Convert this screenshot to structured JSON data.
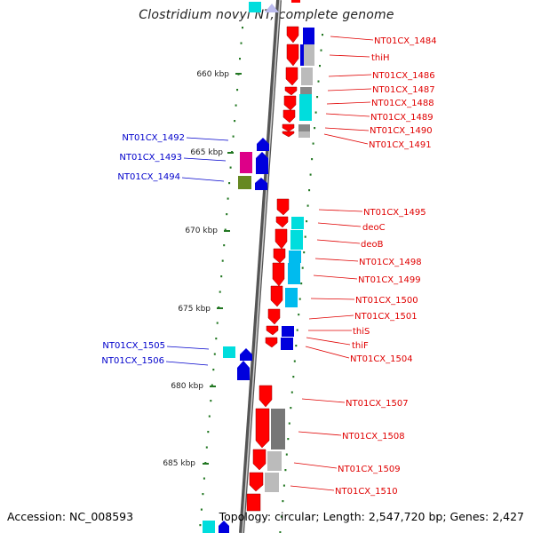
{
  "title": "Clostridium novyi NT, complete genome",
  "footer": {
    "accession": "Accession: NC_008593",
    "topology": "Topology: circular; Length: 2,547,720 bp; Genes: 2,427"
  },
  "colors": {
    "red": "#ff0000",
    "blue": "#0000dd",
    "cyan": "#00dddd",
    "magenta": "#dd0088",
    "olive": "#668822",
    "gray": "#888888",
    "light_gray": "#bbbbbb",
    "ruler_green": "#227722"
  },
  "scale_marks": [
    {
      "label": "660 kbp"
    },
    {
      "label": "665 kbp"
    },
    {
      "label": "670 kbp"
    },
    {
      "label": "675 kbp"
    },
    {
      "label": "680 kbp"
    },
    {
      "label": "685 kbp"
    }
  ],
  "gene_labels_forward": [
    {
      "id": "lbl-1484",
      "text": "NT01CX_1484"
    },
    {
      "id": "lbl-thiH",
      "text": "thiH"
    },
    {
      "id": "lbl-1486",
      "text": "NT01CX_1486"
    },
    {
      "id": "lbl-1487",
      "text": "NT01CX_1487"
    },
    {
      "id": "lbl-1488",
      "text": "NT01CX_1488"
    },
    {
      "id": "lbl-1489",
      "text": "NT01CX_1489"
    },
    {
      "id": "lbl-1490",
      "text": "NT01CX_1490"
    },
    {
      "id": "lbl-1491",
      "text": "NT01CX_1491"
    },
    {
      "id": "lbl-1495",
      "text": "NT01CX_1495"
    },
    {
      "id": "lbl-deoC",
      "text": "deoC"
    },
    {
      "id": "lbl-deoB",
      "text": "deoB"
    },
    {
      "id": "lbl-1498",
      "text": "NT01CX_1498"
    },
    {
      "id": "lbl-1499",
      "text": "NT01CX_1499"
    },
    {
      "id": "lbl-1500",
      "text": "NT01CX_1500"
    },
    {
      "id": "lbl-1501",
      "text": "NT01CX_1501"
    },
    {
      "id": "lbl-thiS",
      "text": "thiS"
    },
    {
      "id": "lbl-thiF",
      "text": "thiF"
    },
    {
      "id": "lbl-1504",
      "text": "NT01CX_1504"
    },
    {
      "id": "lbl-1507",
      "text": "NT01CX_1507"
    },
    {
      "id": "lbl-1508",
      "text": "NT01CX_1508"
    },
    {
      "id": "lbl-1509",
      "text": "NT01CX_1509"
    },
    {
      "id": "lbl-1510",
      "text": "NT01CX_1510"
    }
  ],
  "gene_labels_reverse": [
    {
      "id": "lbl-1492",
      "text": "NT01CX_1492"
    },
    {
      "id": "lbl-1493",
      "text": "NT01CX_1493"
    },
    {
      "id": "lbl-1494",
      "text": "NT01CX_1494"
    },
    {
      "id": "lbl-1505",
      "text": "NT01CX_1505"
    },
    {
      "id": "lbl-1506",
      "text": "NT01CX_1506"
    }
  ]
}
